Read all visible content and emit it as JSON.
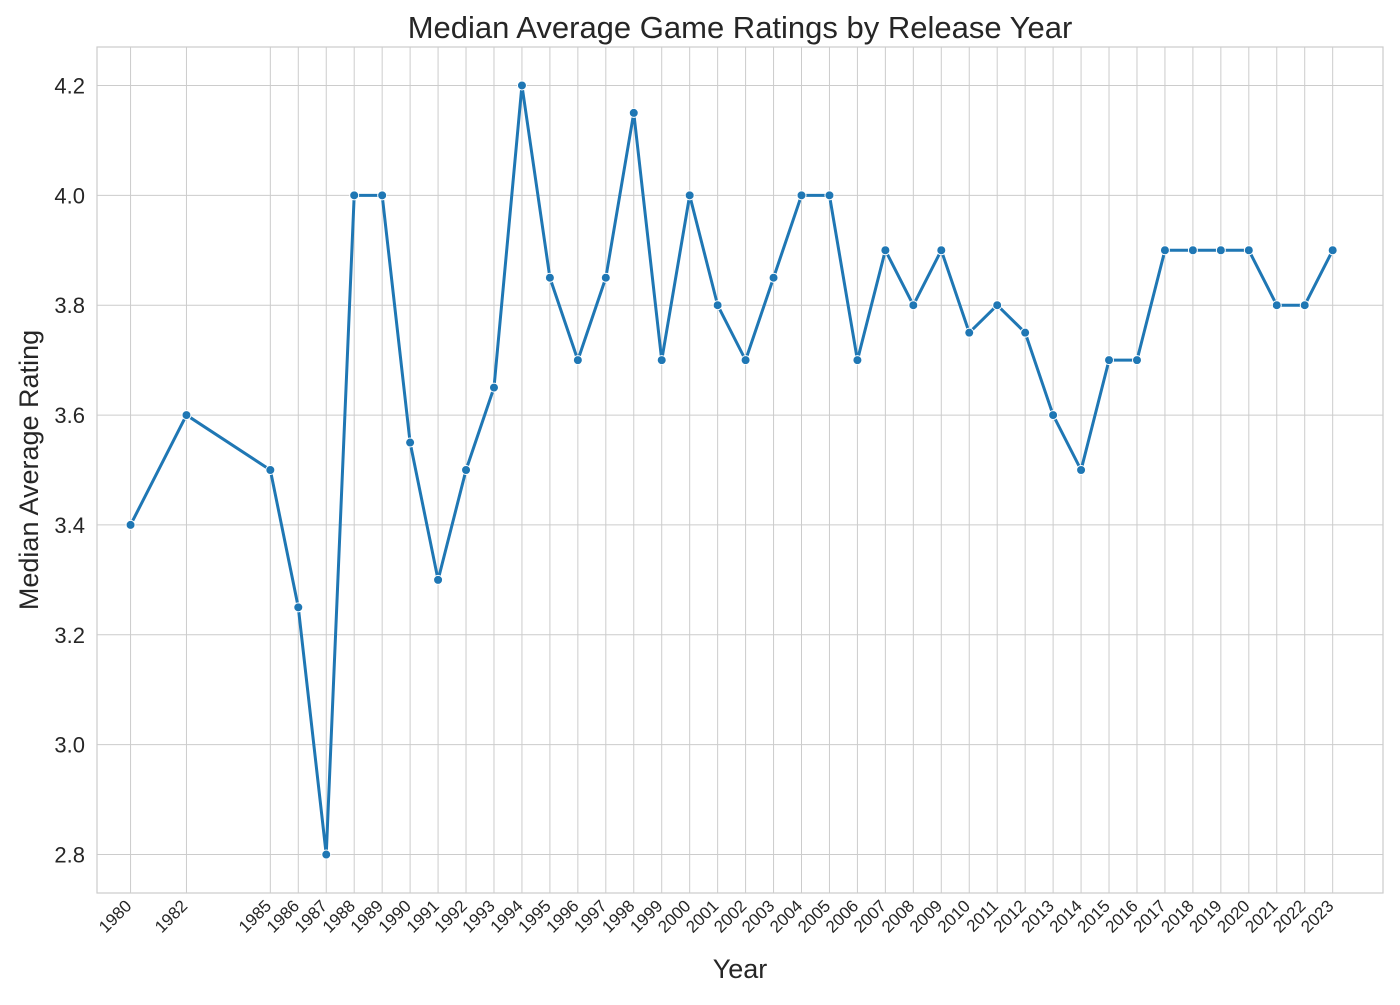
{
  "chart_data": {
    "type": "line",
    "title": "Median Average Game Ratings by Release Year",
    "xlabel": "Year",
    "ylabel": "Median Average Rating",
    "x": [
      1980,
      1982,
      1985,
      1986,
      1987,
      1988,
      1989,
      1990,
      1991,
      1992,
      1993,
      1994,
      1995,
      1996,
      1997,
      1998,
      1999,
      2000,
      2001,
      2002,
      2003,
      2004,
      2005,
      2006,
      2007,
      2008,
      2009,
      2010,
      2011,
      2012,
      2013,
      2014,
      2015,
      2016,
      2017,
      2018,
      2019,
      2020,
      2021,
      2022,
      2023
    ],
    "series": [
      {
        "values": [
          3.4,
          3.6,
          3.5,
          3.25,
          2.8,
          4.0,
          4.0,
          3.55,
          3.3,
          3.5,
          3.65,
          4.2,
          3.85,
          3.7,
          3.85,
          4.15,
          3.7,
          4.0,
          3.8,
          3.7,
          3.85,
          4.0,
          4.0,
          3.7,
          3.9,
          3.8,
          3.9,
          3.75,
          3.8,
          3.75,
          3.6,
          3.5,
          3.7,
          3.7,
          3.9,
          3.9,
          3.9,
          3.9,
          3.8,
          3.8,
          3.9
        ],
        "color": "#1f77b4",
        "marker": "circle"
      }
    ],
    "yticks": [
      "2.8",
      "3.0",
      "3.2",
      "3.4",
      "3.6",
      "3.8",
      "4.0",
      "4.2"
    ],
    "xticks": [
      "1980",
      "1982",
      "1985",
      "1986",
      "1987",
      "1988",
      "1989",
      "1990",
      "1991",
      "1992",
      "1993",
      "1994",
      "1995",
      "1996",
      "1997",
      "1998",
      "1999",
      "2000",
      "2001",
      "2002",
      "2003",
      "2004",
      "2005",
      "2006",
      "2007",
      "2008",
      "2009",
      "2010",
      "2011",
      "2012",
      "2013",
      "2014",
      "2015",
      "2016",
      "2017",
      "2018",
      "2019",
      "2020",
      "2021",
      "2022",
      "2023"
    ],
    "xlim": [
      1978.8,
      2024.8
    ],
    "ylim": [
      2.73,
      4.27
    ],
    "grid": true,
    "xtick_rotation": "45deg",
    "colors": {
      "line": "#1f77b4",
      "grid": "#cccccc",
      "text": "#262626",
      "background": "#ffffff"
    }
  }
}
